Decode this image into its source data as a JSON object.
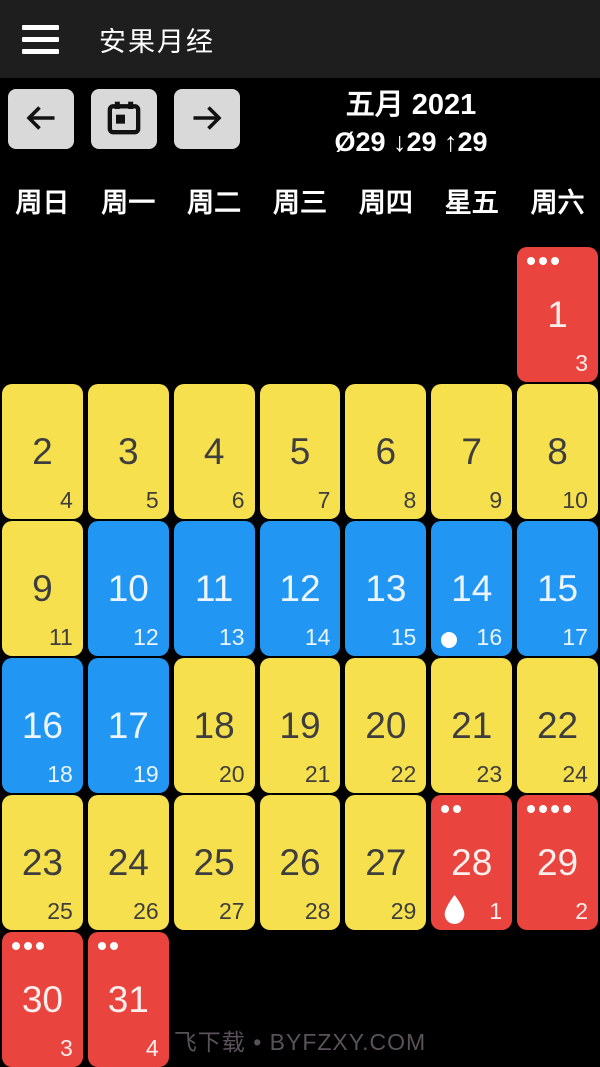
{
  "app_bar": {
    "title": "安果月经"
  },
  "toolbar": {
    "month_title": "五月 2021",
    "cycle_stats": "Ø29 ↓29 ↑29",
    "icons": {
      "menu": "hamburger",
      "prev": "arrow-left",
      "today": "calendar",
      "next": "arrow-right"
    }
  },
  "weekdays": [
    "周日",
    "周一",
    "周二",
    "周三",
    "周四",
    "星五",
    "周六"
  ],
  "colors": {
    "background": "#000000",
    "app_bar": "#1e1e1e",
    "nav_button": "#d9d9d9",
    "period_red": "#e9453e",
    "predicted_yellow": "#f6e04e",
    "fertile_blue": "#2196f3"
  },
  "legend_icons": {
    "ovulation": "ring",
    "period_flow": "water-drop",
    "events": "dots"
  },
  "watermark": "飞下载 • BYFZXY.COM",
  "calendar": {
    "cells": [
      {
        "row": 1,
        "col": 7,
        "day": "1",
        "cycle": "3",
        "color": "red",
        "dots": 3,
        "icon": null
      },
      {
        "row": 2,
        "col": 1,
        "day": "2",
        "cycle": "4",
        "color": "yellow",
        "dots": 0,
        "icon": null
      },
      {
        "row": 2,
        "col": 2,
        "day": "3",
        "cycle": "5",
        "color": "yellow",
        "dots": 0,
        "icon": null
      },
      {
        "row": 2,
        "col": 3,
        "day": "4",
        "cycle": "6",
        "color": "yellow",
        "dots": 0,
        "icon": null
      },
      {
        "row": 2,
        "col": 4,
        "day": "5",
        "cycle": "7",
        "color": "yellow",
        "dots": 0,
        "icon": null
      },
      {
        "row": 2,
        "col": 5,
        "day": "6",
        "cycle": "8",
        "color": "yellow",
        "dots": 0,
        "icon": null
      },
      {
        "row": 2,
        "col": 6,
        "day": "7",
        "cycle": "9",
        "color": "yellow",
        "dots": 0,
        "icon": null
      },
      {
        "row": 2,
        "col": 7,
        "day": "8",
        "cycle": "10",
        "color": "yellow",
        "dots": 0,
        "icon": null
      },
      {
        "row": 3,
        "col": 1,
        "day": "9",
        "cycle": "11",
        "color": "yellow",
        "dots": 0,
        "icon": null
      },
      {
        "row": 3,
        "col": 2,
        "day": "10",
        "cycle": "12",
        "color": "blue",
        "dots": 0,
        "icon": null
      },
      {
        "row": 3,
        "col": 3,
        "day": "11",
        "cycle": "13",
        "color": "blue",
        "dots": 0,
        "icon": null
      },
      {
        "row": 3,
        "col": 4,
        "day": "12",
        "cycle": "14",
        "color": "blue",
        "dots": 0,
        "icon": null
      },
      {
        "row": 3,
        "col": 5,
        "day": "13",
        "cycle": "15",
        "color": "blue",
        "dots": 0,
        "icon": null
      },
      {
        "row": 3,
        "col": 6,
        "day": "14",
        "cycle": "16",
        "color": "blue",
        "dots": 0,
        "icon": "ovulation-ring"
      },
      {
        "row": 3,
        "col": 7,
        "day": "15",
        "cycle": "17",
        "color": "blue",
        "dots": 0,
        "icon": null
      },
      {
        "row": 4,
        "col": 1,
        "day": "16",
        "cycle": "18",
        "color": "blue",
        "dots": 0,
        "icon": null
      },
      {
        "row": 4,
        "col": 2,
        "day": "17",
        "cycle": "19",
        "color": "blue",
        "dots": 0,
        "icon": null
      },
      {
        "row": 4,
        "col": 3,
        "day": "18",
        "cycle": "20",
        "color": "yellow",
        "dots": 0,
        "icon": null
      },
      {
        "row": 4,
        "col": 4,
        "day": "19",
        "cycle": "21",
        "color": "yellow",
        "dots": 0,
        "icon": null
      },
      {
        "row": 4,
        "col": 5,
        "day": "20",
        "cycle": "22",
        "color": "yellow",
        "dots": 0,
        "icon": null
      },
      {
        "row": 4,
        "col": 6,
        "day": "21",
        "cycle": "23",
        "color": "yellow",
        "dots": 0,
        "icon": null
      },
      {
        "row": 4,
        "col": 7,
        "day": "22",
        "cycle": "24",
        "color": "yellow",
        "dots": 0,
        "icon": null
      },
      {
        "row": 5,
        "col": 1,
        "day": "23",
        "cycle": "25",
        "color": "yellow",
        "dots": 0,
        "icon": null
      },
      {
        "row": 5,
        "col": 2,
        "day": "24",
        "cycle": "26",
        "color": "yellow",
        "dots": 0,
        "icon": null
      },
      {
        "row": 5,
        "col": 3,
        "day": "25",
        "cycle": "27",
        "color": "yellow",
        "dots": 0,
        "icon": null
      },
      {
        "row": 5,
        "col": 4,
        "day": "26",
        "cycle": "28",
        "color": "yellow",
        "dots": 0,
        "icon": null
      },
      {
        "row": 5,
        "col": 5,
        "day": "27",
        "cycle": "29",
        "color": "yellow",
        "dots": 0,
        "icon": null
      },
      {
        "row": 5,
        "col": 6,
        "day": "28",
        "cycle": "1",
        "color": "red",
        "dots": 2,
        "icon": "water-drop"
      },
      {
        "row": 5,
        "col": 7,
        "day": "29",
        "cycle": "2",
        "color": "red",
        "dots": 4,
        "icon": null
      },
      {
        "row": 6,
        "col": 1,
        "day": "30",
        "cycle": "3",
        "color": "red",
        "dots": 3,
        "icon": null
      },
      {
        "row": 6,
        "col": 2,
        "day": "31",
        "cycle": "4",
        "color": "red",
        "dots": 2,
        "icon": null
      }
    ]
  }
}
